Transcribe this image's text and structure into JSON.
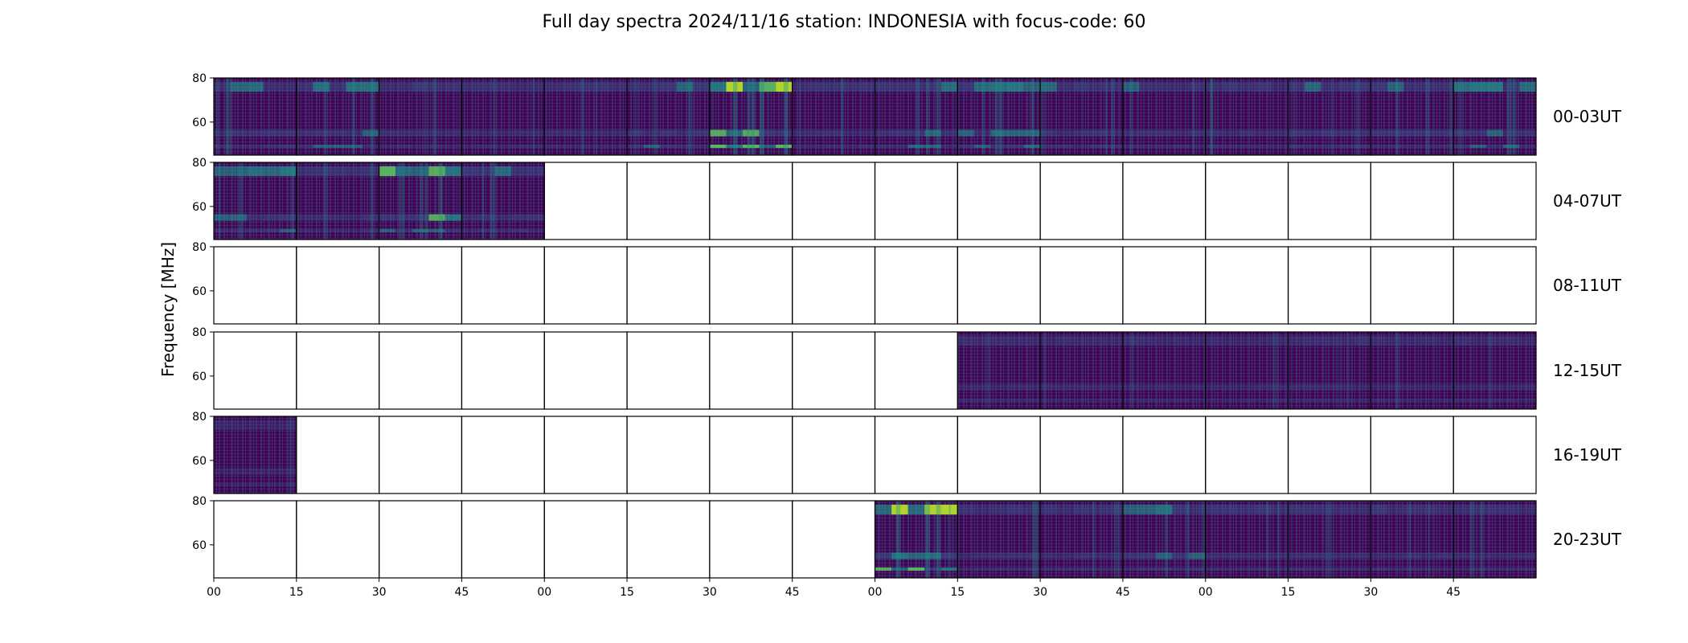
{
  "chart_data": {
    "type": "heatmap",
    "title": "Full day spectra 2024/11/16 station: INDONESIA with focus-code: 60",
    "ylabel": "Frequency [MHz]",
    "xlabel": "",
    "ylim": [
      45,
      80
    ],
    "yticks": [
      60,
      80
    ],
    "xtick_labels": [
      "00",
      "15",
      "30",
      "45",
      "00",
      "15",
      "30",
      "45",
      "00",
      "15",
      "30",
      "45",
      "00",
      "15",
      "30",
      "45"
    ],
    "colormap": "viridis",
    "colors": {
      "low": "#440154",
      "mid": "#3b528b",
      "teal": "#21918c",
      "high": "#5ec962",
      "peak": "#b5de2b"
    },
    "rows": [
      {
        "label": "00-03UT",
        "has_data": [
          1,
          1,
          1,
          1,
          1,
          1,
          1,
          1,
          1,
          1,
          1,
          1,
          1,
          1,
          1,
          1
        ],
        "intensity": [
          0.45,
          0.5,
          0.35,
          0.35,
          0.3,
          0.5,
          0.9,
          0.35,
          0.55,
          0.6,
          0.45,
          0.4,
          0.35,
          0.5,
          0.5,
          0.55
        ]
      },
      {
        "label": "04-07UT",
        "has_data": [
          1,
          1,
          1,
          1,
          0,
          0,
          0,
          0,
          0,
          0,
          0,
          0,
          0,
          0,
          0,
          0
        ],
        "intensity": [
          0.55,
          0.35,
          0.75,
          0.45,
          0,
          0,
          0,
          0,
          0,
          0,
          0,
          0,
          0,
          0,
          0,
          0
        ]
      },
      {
        "label": "08-11UT",
        "has_data": [
          0,
          0,
          0,
          0,
          0,
          0,
          0,
          0,
          0,
          0,
          0,
          0,
          0,
          0,
          0,
          0
        ],
        "intensity": [
          0,
          0,
          0,
          0,
          0,
          0,
          0,
          0,
          0,
          0,
          0,
          0,
          0,
          0,
          0,
          0
        ]
      },
      {
        "label": "12-15UT",
        "has_data": [
          0,
          0,
          0,
          0,
          0,
          0,
          0,
          0,
          0,
          1,
          1,
          1,
          1,
          1,
          1,
          1
        ],
        "intensity": [
          0,
          0,
          0,
          0,
          0,
          0,
          0,
          0,
          0,
          0.2,
          0.2,
          0.22,
          0.2,
          0.25,
          0.2,
          0.22
        ]
      },
      {
        "label": "16-19UT",
        "has_data": [
          1,
          0,
          0,
          0,
          0,
          0,
          0,
          0,
          0,
          0,
          0,
          0,
          0,
          0,
          0,
          0
        ],
        "intensity": [
          0.12,
          0,
          0,
          0,
          0,
          0,
          0,
          0,
          0,
          0,
          0,
          0,
          0,
          0,
          0,
          0
        ]
      },
      {
        "label": "20-23UT",
        "has_data": [
          0,
          0,
          0,
          0,
          0,
          0,
          0,
          0,
          1,
          1,
          1,
          1,
          1,
          1,
          1,
          1
        ],
        "intensity": [
          0,
          0,
          0,
          0,
          0,
          0,
          0,
          0,
          0.85,
          0.3,
          0.35,
          0.5,
          0.35,
          0.4,
          0.35,
          0.3
        ]
      }
    ]
  }
}
